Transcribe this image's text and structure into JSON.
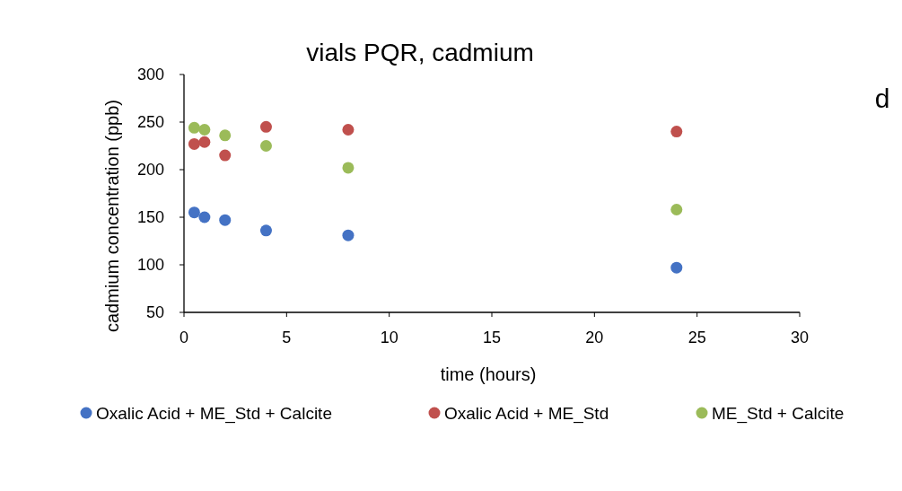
{
  "chart_data": {
    "type": "scatter",
    "title": "vials PQR, cadmium",
    "xlabel": "time (hours)",
    "ylabel": "cadmium concentration (ppb)",
    "annotations": [
      "d"
    ],
    "x": [
      0.5,
      1,
      2,
      4,
      8,
      24
    ],
    "series": [
      {
        "name": "Oxalic Acid + ME_Std + Calcite",
        "color": "#4472c4",
        "values": [
          155,
          150,
          147,
          136,
          131,
          97
        ]
      },
      {
        "name": "Oxalic Acid + ME_Std",
        "color": "#c0504d",
        "values": [
          227,
          229,
          215,
          245,
          242,
          240
        ]
      },
      {
        "name": "ME_Std + Calcite",
        "color": "#9bbb59",
        "values": [
          244,
          242,
          236,
          225,
          202,
          158
        ]
      }
    ],
    "xlim": [
      0,
      30
    ],
    "xticks": [
      0,
      5,
      10,
      15,
      20,
      25,
      30
    ],
    "ylim": [
      50,
      300
    ],
    "yticks": [
      50,
      100,
      150,
      200,
      250,
      300
    ],
    "grid": false,
    "legend": "bottom",
    "marker": "circle"
  }
}
